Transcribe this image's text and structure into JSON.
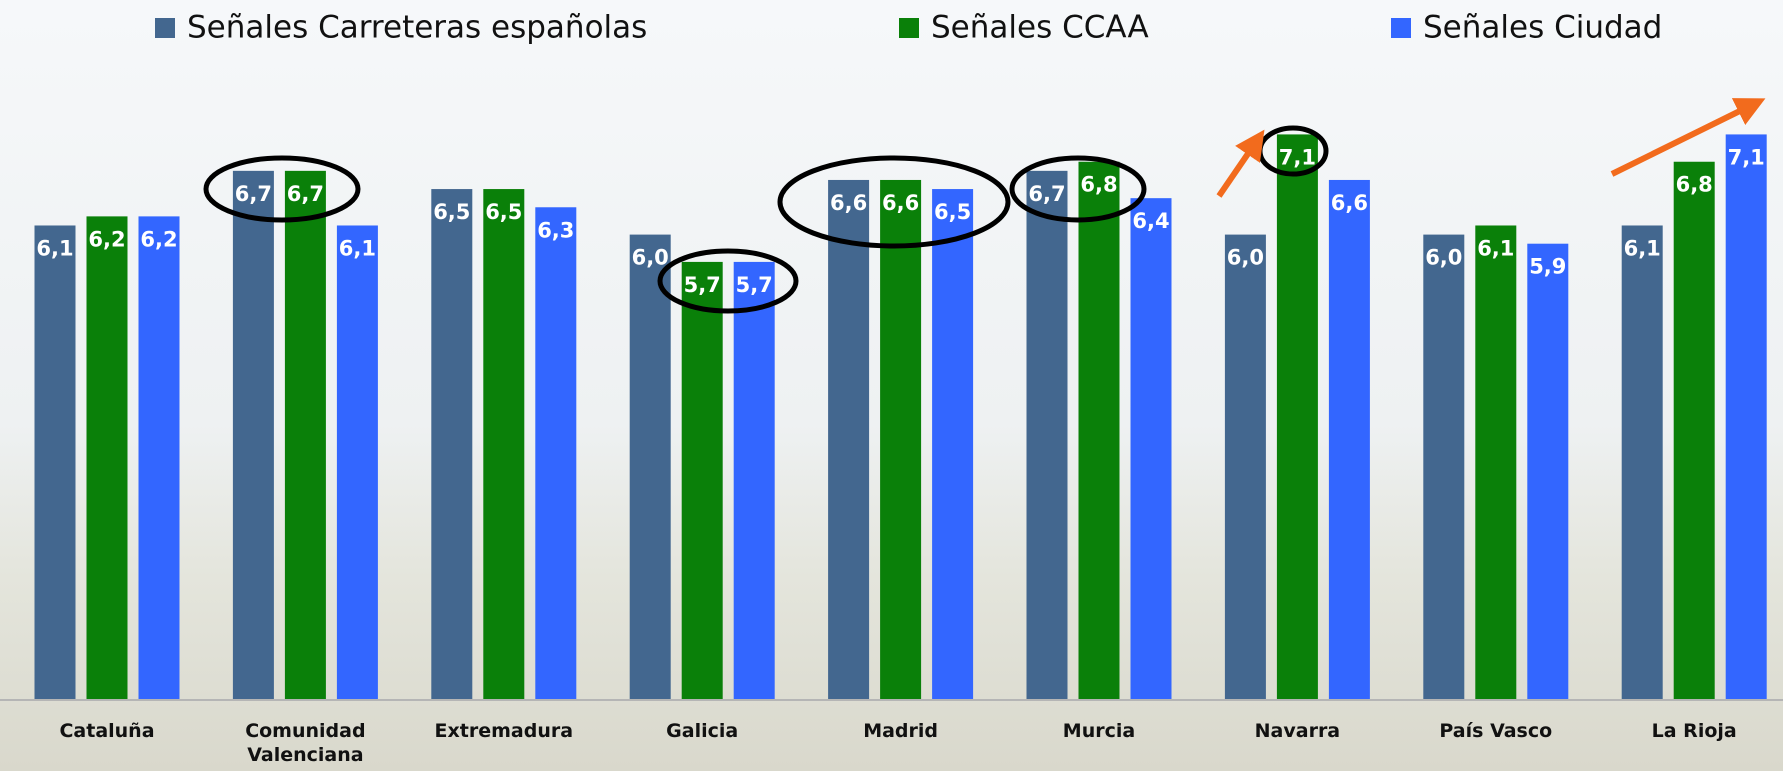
{
  "chart_data": {
    "type": "bar",
    "categories": [
      "Cataluña",
      "Comunidad Valenciana",
      "Extremadura",
      "Galicia",
      "Madrid",
      "Murcia",
      "Navarra",
      "País Vasco",
      "La Rioja"
    ],
    "series": [
      {
        "name": "Señales Carreteras españolas",
        "color": "#43678f",
        "values": [
          6.1,
          6.7,
          6.5,
          6.0,
          6.6,
          6.7,
          6.0,
          6.0,
          6.1
        ],
        "value_labels": [
          "6,1",
          "6,7",
          "6,5",
          "6,0",
          "6,6",
          "6,7",
          "6,0",
          "6,0",
          "6,1"
        ]
      },
      {
        "name": "Señales CCAA",
        "color": "#0a8009",
        "values": [
          6.2,
          6.7,
          6.5,
          5.7,
          6.6,
          6.8,
          7.1,
          6.1,
          6.8
        ],
        "value_labels": [
          "6,2",
          "6,7",
          "6,5",
          "5,7",
          "6,6",
          "6,8",
          "7,1",
          "6,1",
          "6,8"
        ]
      },
      {
        "name": "Señales Ciudad",
        "color": "#3366ff",
        "values": [
          6.2,
          6.1,
          6.3,
          5.7,
          6.5,
          6.4,
          6.6,
          5.9,
          7.1
        ],
        "value_labels": [
          "6,2",
          "6,1",
          "6,3",
          "5,7",
          "6,5",
          "6,4",
          "6,6",
          "5,9",
          "7,1"
        ]
      }
    ],
    "ylim": [
      0.9,
      7.5
    ],
    "legend": "top"
  }
}
